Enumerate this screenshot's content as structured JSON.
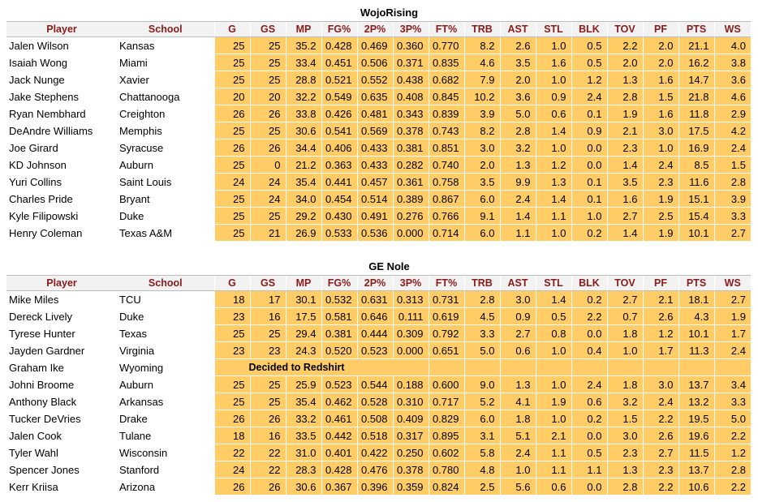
{
  "columns": [
    "Player",
    "School",
    "G",
    "GS",
    "MP",
    "FG%",
    "2P%",
    "3P%",
    "FT%",
    "TRB",
    "AST",
    "STL",
    "BLK",
    "TOV",
    "PF",
    "PTS",
    "WS"
  ],
  "teams": [
    {
      "name": "WojoRising",
      "rows": [
        {
          "player": "Jalen Wilson",
          "school": "Kansas",
          "stats": [
            "25",
            "25",
            "35.2",
            "0.428",
            "0.469",
            "0.360",
            "0.770",
            "8.2",
            "2.6",
            "1.0",
            "0.5",
            "2.2",
            "2.0",
            "21.1",
            "4.0"
          ]
        },
        {
          "player": "Isaiah Wong",
          "school": "Miami",
          "stats": [
            "25",
            "25",
            "33.4",
            "0.451",
            "0.506",
            "0.371",
            "0.835",
            "4.6",
            "3.5",
            "1.6",
            "0.5",
            "2.0",
            "2.0",
            "16.2",
            "3.8"
          ]
        },
        {
          "player": "Jack Nunge",
          "school": "Xavier",
          "stats": [
            "25",
            "25",
            "28.8",
            "0.521",
            "0.552",
            "0.438",
            "0.682",
            "7.9",
            "2.0",
            "1.0",
            "1.2",
            "1.3",
            "1.6",
            "14.7",
            "3.6"
          ]
        },
        {
          "player": "Jake Stephens",
          "school": "Chattanooga",
          "stats": [
            "20",
            "20",
            "32.2",
            "0.549",
            "0.635",
            "0.408",
            "0.845",
            "10.2",
            "3.6",
            "0.9",
            "2.4",
            "2.8",
            "1.5",
            "21.8",
            "4.6"
          ]
        },
        {
          "player": "Ryan Nembhard",
          "school": "Creighton",
          "stats": [
            "26",
            "26",
            "33.8",
            "0.426",
            "0.481",
            "0.343",
            "0.839",
            "3.9",
            "5.0",
            "0.6",
            "0.1",
            "1.9",
            "1.6",
            "11.8",
            "2.9"
          ]
        },
        {
          "player": "DeAndre Williams",
          "school": "Memphis",
          "stats": [
            "25",
            "25",
            "30.6",
            "0.541",
            "0.569",
            "0.378",
            "0.743",
            "8.2",
            "2.8",
            "1.4",
            "0.9",
            "2.1",
            "3.0",
            "17.5",
            "4.2"
          ]
        },
        {
          "player": "Joe Girard",
          "school": "Syracuse",
          "stats": [
            "26",
            "26",
            "34.4",
            "0.406",
            "0.433",
            "0.381",
            "0.851",
            "3.0",
            "3.2",
            "1.0",
            "0.0",
            "2.3",
            "1.0",
            "16.9",
            "2.4"
          ]
        },
        {
          "player": "KD Johnson",
          "school": "Auburn",
          "stats": [
            "25",
            "0",
            "21.2",
            "0.363",
            "0.433",
            "0.282",
            "0.740",
            "2.0",
            "1.3",
            "1.2",
            "0.0",
            "1.4",
            "2.4",
            "8.5",
            "1.5"
          ]
        },
        {
          "player": "Yuri Collins",
          "school": "Saint Louis",
          "stats": [
            "24",
            "24",
            "35.4",
            "0.441",
            "0.457",
            "0.361",
            "0.758",
            "3.5",
            "9.9",
            "1.3",
            "0.1",
            "3.5",
            "2.3",
            "11.6",
            "2.8"
          ]
        },
        {
          "player": "Charles Pride",
          "school": "Bryant",
          "stats": [
            "25",
            "24",
            "34.0",
            "0.454",
            "0.514",
            "0.389",
            "0.867",
            "6.0",
            "2.4",
            "1.4",
            "0.1",
            "1.6",
            "1.9",
            "15.1",
            "3.9"
          ]
        },
        {
          "player": "Kyle Filipowski",
          "school": "Duke",
          "stats": [
            "25",
            "25",
            "29.2",
            "0.430",
            "0.491",
            "0.276",
            "0.766",
            "9.1",
            "1.4",
            "1.1",
            "1.0",
            "2.7",
            "2.5",
            "15.4",
            "3.3"
          ]
        },
        {
          "player": "Henry Coleman",
          "school": "Texas A&M",
          "stats": [
            "25",
            "21",
            "26.9",
            "0.533",
            "0.536",
            "0.000",
            "0.714",
            "6.0",
            "1.1",
            "1.0",
            "0.2",
            "1.4",
            "1.9",
            "10.1",
            "2.7"
          ]
        }
      ]
    },
    {
      "name": "GE Nole",
      "rows": [
        {
          "player": "Mike Miles",
          "school": "TCU",
          "stats": [
            "18",
            "17",
            "30.1",
            "0.532",
            "0.631",
            "0.313",
            "0.731",
            "2.8",
            "3.0",
            "1.4",
            "0.2",
            "2.7",
            "2.1",
            "18.1",
            "2.7"
          ]
        },
        {
          "player": "Dereck Lively",
          "school": "Duke",
          "stats": [
            "23",
            "16",
            "17.5",
            "0.581",
            "0.646",
            "0.111",
            "0.619",
            "4.5",
            "0.9",
            "0.5",
            "2.2",
            "0.7",
            "2.6",
            "4.3",
            "1.9"
          ]
        },
        {
          "player": "Tyrese Hunter",
          "school": "Texas",
          "stats": [
            "25",
            "25",
            "29.4",
            "0.381",
            "0.444",
            "0.309",
            "0.792",
            "3.3",
            "2.7",
            "0.8",
            "0.0",
            "1.8",
            "1.2",
            "10.1",
            "1.7"
          ]
        },
        {
          "player": "Jayden Gardner",
          "school": "Virginia",
          "stats": [
            "23",
            "23",
            "24.3",
            "0.520",
            "0.523",
            "0.000",
            "0.651",
            "5.0",
            "0.6",
            "1.0",
            "0.4",
            "1.0",
            "1.7",
            "11.3",
            "2.4"
          ]
        },
        {
          "player": "Graham Ike",
          "school": "Wyoming",
          "note": "Decided to Redshirt"
        },
        {
          "player": "Johni Broome",
          "school": "Auburn",
          "stats": [
            "25",
            "25",
            "25.9",
            "0.523",
            "0.544",
            "0.188",
            "0.600",
            "9.0",
            "1.3",
            "1.0",
            "2.4",
            "1.8",
            "3.0",
            "13.7",
            "3.4"
          ]
        },
        {
          "player": "Anthony Black",
          "school": "Arkansas",
          "stats": [
            "25",
            "25",
            "35.4",
            "0.462",
            "0.528",
            "0.310",
            "0.717",
            "5.2",
            "4.1",
            "1.9",
            "0.6",
            "3.2",
            "2.4",
            "13.2",
            "3.3"
          ]
        },
        {
          "player": "Tucker DeVries",
          "school": "Drake",
          "stats": [
            "26",
            "26",
            "33.2",
            "0.461",
            "0.508",
            "0.409",
            "0.829",
            "6.0",
            "1.8",
            "1.0",
            "0.2",
            "1.5",
            "2.2",
            "19.5",
            "5.0"
          ]
        },
        {
          "player": "Jalen Cook",
          "school": "Tulane",
          "stats": [
            "18",
            "16",
            "33.5",
            "0.442",
            "0.518",
            "0.317",
            "0.895",
            "3.1",
            "5.1",
            "2.1",
            "0.0",
            "3.0",
            "2.6",
            "19.6",
            "2.2"
          ]
        },
        {
          "player": "Tyler Wahl",
          "school": "Wisconsin",
          "stats": [
            "22",
            "22",
            "31.0",
            "0.401",
            "0.422",
            "0.250",
            "0.602",
            "5.8",
            "2.4",
            "1.1",
            "0.5",
            "2.3",
            "2.7",
            "11.5",
            "1.2"
          ]
        },
        {
          "player": "Spencer Jones",
          "school": "Stanford",
          "stats": [
            "24",
            "22",
            "28.3",
            "0.428",
            "0.476",
            "0.378",
            "0.780",
            "4.8",
            "1.0",
            "1.1",
            "1.1",
            "1.3",
            "2.3",
            "13.7",
            "2.8"
          ]
        },
        {
          "player": "Kerr Kriisa",
          "school": "Arizona",
          "stats": [
            "26",
            "26",
            "30.6",
            "0.367",
            "0.396",
            "0.359",
            "0.824",
            "2.5",
            "5.6",
            "0.6",
            "0.0",
            "2.8",
            "2.2",
            "10.6",
            "2.2"
          ]
        }
      ]
    }
  ]
}
